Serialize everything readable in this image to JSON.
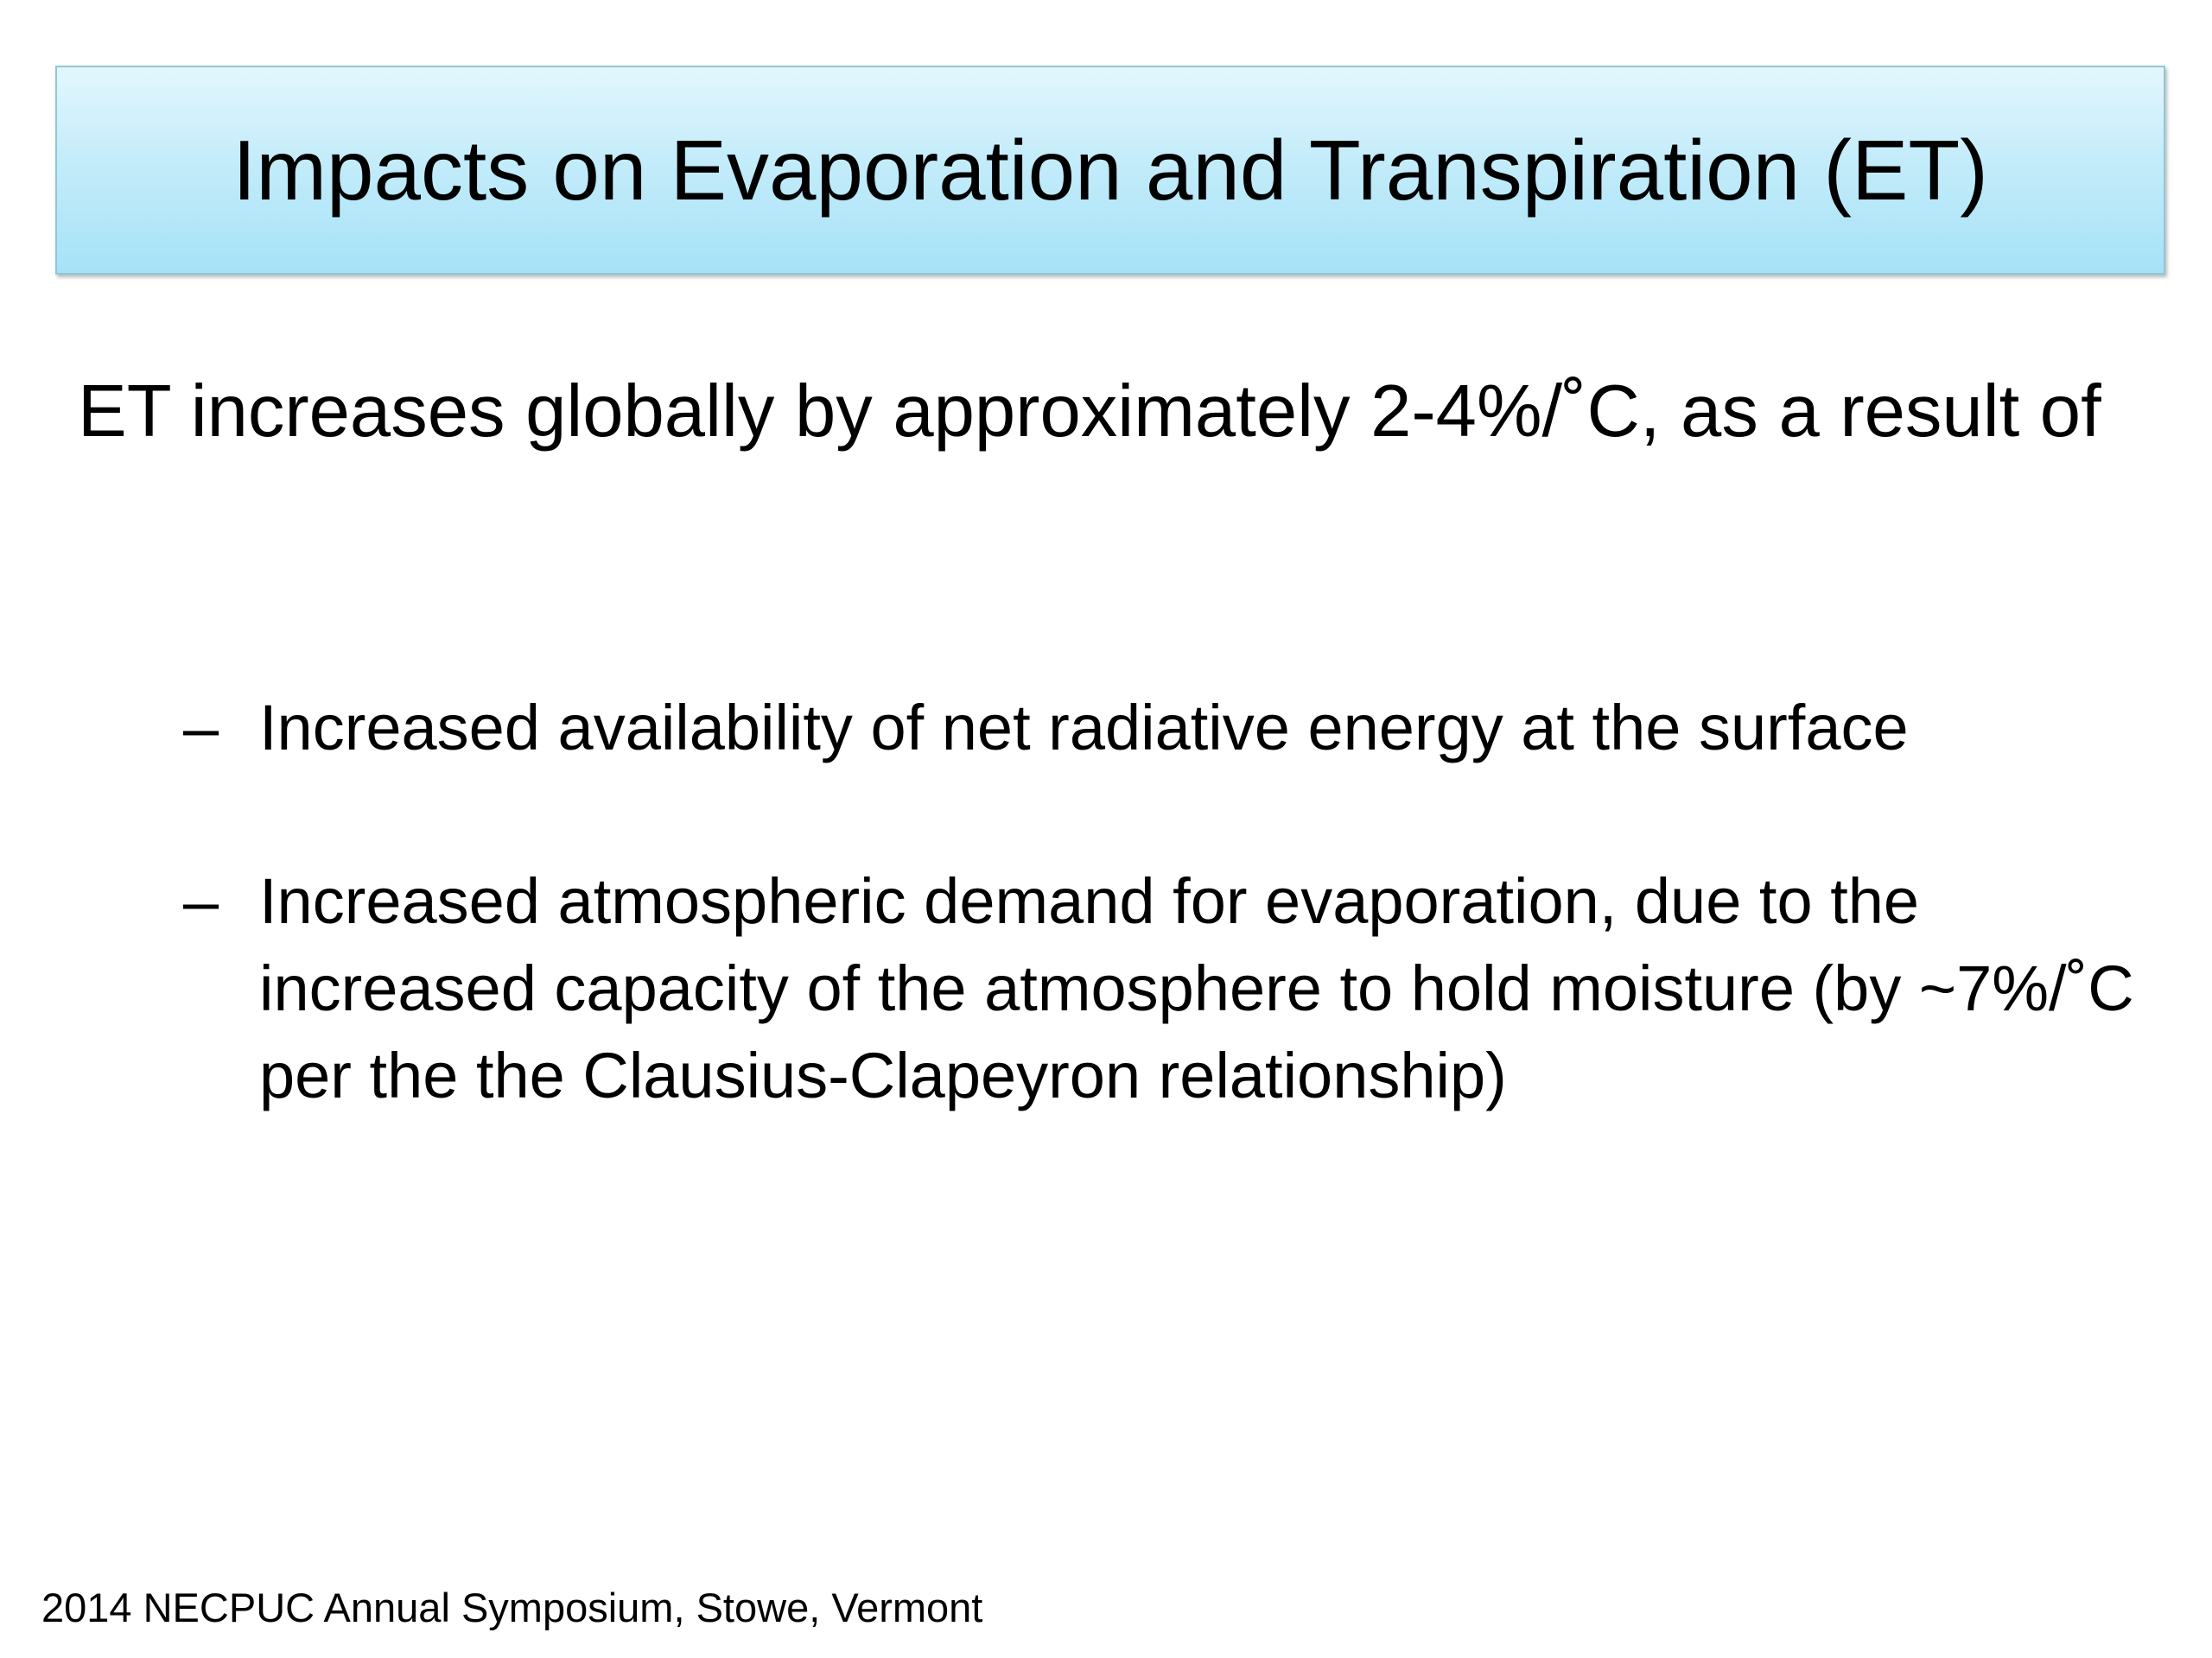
{
  "slide": {
    "title": "Impacts on Evaporation and Transpiration (ET)",
    "lead": "ET increases globally by approximately 2-4%/˚C, as a result of",
    "bullet_marker": "–",
    "bullets": [
      {
        "text": "Increased availability of net radiative energy at the surface"
      },
      {
        "text": "Increased atmospheric demand for evaporation, due to the increased capacity of the atmosphere to hold moisture (by ~7%/˚C  per the the Clausius-Clapeyron relationship)"
      }
    ],
    "footer": "2014 NECPUC Annual Symposium, Stowe, Vermont"
  },
  "colors": {
    "title_fill_top": "#e3f7fd",
    "title_fill_bottom": "#a6e2f7",
    "title_border": "#8fc7d9",
    "text": "#000000",
    "background": "#ffffff"
  }
}
